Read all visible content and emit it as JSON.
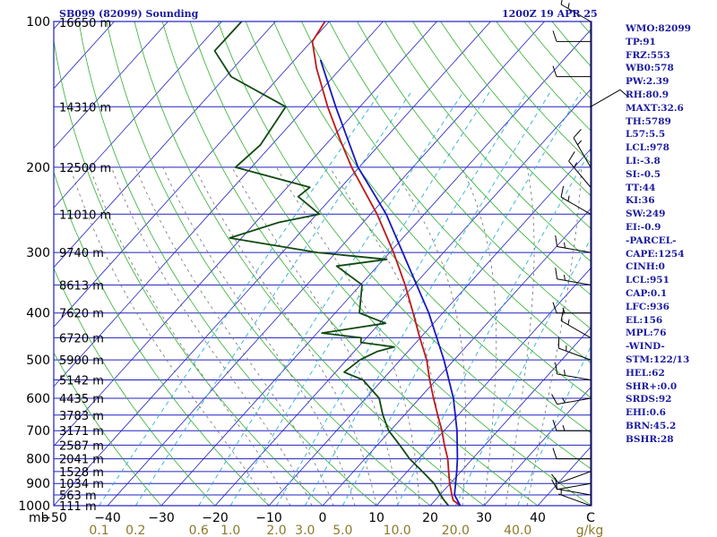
{
  "header": {
    "station": "SB099 (82099) Sounding",
    "time": "1200Z 19 APR 25"
  },
  "indices": [
    "WMO:82099",
    "TP:91",
    "FRZ:553",
    "WB0:578",
    "PW:2.39",
    "RH:80.9",
    "MAXT:32.6",
    "TH:5789",
    "L57:5.5",
    "LCL:978",
    "LI:-3.8",
    "SI:-0.5",
    "TT:44",
    "KI:36",
    "SW:249",
    "EI:-0.9",
    "-PARCEL-",
    "CAPE:1254",
    "CINH:0",
    "LCL:951",
    "CAP:0.1",
    "LFC:936",
    "EL:156",
    "MPL:76",
    "-WIND-",
    "STM:122/13",
    "HEL:62",
    "SHR+:0.0",
    "SRDS:92",
    "EHI:0.6",
    "BRN:45.2",
    "BSHR:28"
  ],
  "colors": {
    "isobar": "#2020c0",
    "isotherm": "#2020c0",
    "dry_adiabat": "#30b030",
    "moist_adiabat": "#707070",
    "mixing_ratio": "#30b0d0",
    "temperature": "#c01818",
    "dewpoint": "#104a10",
    "parcel": "#1818c0",
    "axis_label": "#000000",
    "mixing_ratio_label": "#8a7a2a",
    "wind_barb": "#000000"
  },
  "chart_data": {
    "type": "skew-t",
    "title": "SB099 (82099) Sounding",
    "pressure_axis": {
      "unit_label": "mb",
      "ticks": [
        100,
        200,
        300,
        400,
        500,
        600,
        700,
        800,
        900,
        1000
      ],
      "range": [
        1000,
        100
      ],
      "scale": "log"
    },
    "temperature_axis": {
      "unit_label": "C",
      "ticks": [
        -50,
        -40,
        -30,
        -20,
        -10,
        0,
        10,
        20,
        30,
        40
      ],
      "range": [
        -50,
        50
      ]
    },
    "mixing_ratio_axis": {
      "unit_label": "g/kg",
      "ticks": [
        "0.1",
        "0.2",
        "0.6",
        "1.0",
        "2.0",
        "3.0",
        "5.0",
        "10.0",
        "20.0",
        "40.0"
      ],
      "values": [
        0.1,
        0.2,
        0.6,
        1.0,
        2.0,
        3.0,
        5.0,
        10.0,
        20.0,
        40.0
      ]
    },
    "height_labels": [
      {
        "p": 100,
        "label": "16650 m"
      },
      {
        "p": 150,
        "label": "14310 m"
      },
      {
        "p": 200,
        "label": "12500 m"
      },
      {
        "p": 250,
        "label": "11010 m"
      },
      {
        "p": 300,
        "label": "9740 m"
      },
      {
        "p": 350,
        "label": "8613 m"
      },
      {
        "p": 400,
        "label": "7620 m"
      },
      {
        "p": 450,
        "label": "6720 m"
      },
      {
        "p": 500,
        "label": "5900 m"
      },
      {
        "p": 550,
        "label": "5142 m"
      },
      {
        "p": 600,
        "label": "4435 m"
      },
      {
        "p": 650,
        "label": "3783 m"
      },
      {
        "p": 700,
        "label": "3171 m"
      },
      {
        "p": 750,
        "label": "2587 m"
      },
      {
        "p": 800,
        "label": "2041 m"
      },
      {
        "p": 850,
        "label": "1528 m"
      },
      {
        "p": 900,
        "label": "1034 m"
      },
      {
        "p": 950,
        "label": "563 m"
      },
      {
        "p": 1000,
        "label": "111 m"
      }
    ],
    "series": [
      {
        "name": "Temperature",
        "points": [
          [
            1008,
            26.6
          ],
          [
            1000,
            25.6
          ],
          [
            975,
            23.4
          ],
          [
            950,
            22.2
          ],
          [
            925,
            21.1
          ],
          [
            900,
            19.9
          ],
          [
            850,
            17.7
          ],
          [
            800,
            15.4
          ],
          [
            750,
            12.5
          ],
          [
            700,
            9.6
          ],
          [
            650,
            6.2
          ],
          [
            600,
            2.6
          ],
          [
            550,
            -1.2
          ],
          [
            500,
            -5.1
          ],
          [
            450,
            -10.1
          ],
          [
            400,
            -15.5
          ],
          [
            350,
            -21.7
          ],
          [
            300,
            -29.3
          ],
          [
            250,
            -38.8
          ],
          [
            200,
            -51.4
          ],
          [
            175,
            -58.3
          ],
          [
            150,
            -66.0
          ],
          [
            125,
            -74.5
          ],
          [
            110,
            -79.8
          ],
          [
            100,
            -80.8
          ]
        ]
      },
      {
        "name": "Dewpoint",
        "points": [
          [
            1008,
            24.0
          ],
          [
            1000,
            23.4
          ],
          [
            975,
            21.7
          ],
          [
            950,
            20.1
          ],
          [
            925,
            18.6
          ],
          [
            900,
            17.0
          ],
          [
            850,
            12.8
          ],
          [
            800,
            8.3
          ],
          [
            750,
            4.2
          ],
          [
            700,
            -0.3
          ],
          [
            650,
            -4.0
          ],
          [
            600,
            -7.5
          ],
          [
            550,
            -13.6
          ],
          [
            530,
            -18.4
          ],
          [
            500,
            -17.5
          ],
          [
            480,
            -15.7
          ],
          [
            470,
            -13.3
          ],
          [
            460,
            -20.3
          ],
          [
            450,
            -21.0
          ],
          [
            440,
            -29.1
          ],
          [
            420,
            -18.9
          ],
          [
            400,
            -25.5
          ],
          [
            350,
            -29.7
          ],
          [
            320,
            -37.6
          ],
          [
            310,
            -29.4
          ],
          [
            300,
            -43.5
          ],
          [
            280,
            -62.2
          ],
          [
            260,
            -55.7
          ],
          [
            250,
            -49.5
          ],
          [
            230,
            -56.4
          ],
          [
            220,
            -55.8
          ],
          [
            200,
            -73.0
          ],
          [
            180,
            -72.1
          ],
          [
            150,
            -73.8
          ],
          [
            130,
            -89.0
          ],
          [
            115,
            -96.4
          ],
          [
            100,
            -96.3
          ]
        ]
      },
      {
        "name": "Parcel",
        "points": [
          [
            1000,
            25.6
          ],
          [
            950,
            22.7
          ],
          [
            900,
            21.0
          ],
          [
            850,
            19.2
          ],
          [
            800,
            17.2
          ],
          [
            700,
            12.4
          ],
          [
            600,
            6.3
          ],
          [
            500,
            -1.9
          ],
          [
            400,
            -12.6
          ],
          [
            300,
            -27.6
          ],
          [
            250,
            -37.1
          ],
          [
            200,
            -50.2
          ],
          [
            150,
            -64.5
          ],
          [
            120,
            -75.2
          ]
        ]
      }
    ],
    "winds": [
      {
        "p": 1000,
        "dir": 290,
        "spd": 5
      },
      {
        "p": 950,
        "dir": 280,
        "spd": 10
      },
      {
        "p": 900,
        "dir": 260,
        "spd": 10
      },
      {
        "p": 850,
        "dir": 250,
        "spd": 10
      },
      {
        "p": 800,
        "dir": 270,
        "spd": 10
      },
      {
        "p": 700,
        "dir": 270,
        "spd": 15
      },
      {
        "p": 600,
        "dir": 260,
        "spd": 15
      },
      {
        "p": 550,
        "dir": 280,
        "spd": 15
      },
      {
        "p": 500,
        "dir": 290,
        "spd": 15
      },
      {
        "p": 450,
        "dir": 300,
        "spd": 15
      },
      {
        "p": 400,
        "dir": 270,
        "spd": 15
      },
      {
        "p": 350,
        "dir": 280,
        "spd": 15
      },
      {
        "p": 300,
        "dir": 280,
        "spd": 15
      },
      {
        "p": 250,
        "dir": 300,
        "spd": 15
      },
      {
        "p": 220,
        "dir": 320,
        "spd": 15
      },
      {
        "p": 200,
        "dir": 330,
        "spd": 15
      },
      {
        "p": 150,
        "dir": 60,
        "spd": 10
      },
      {
        "p": 130,
        "dir": 270,
        "spd": 10
      },
      {
        "p": 110,
        "dir": 270,
        "spd": 10
      },
      {
        "p": 100,
        "dir": 300,
        "spd": 15
      }
    ],
    "grid": true,
    "legend": "none"
  }
}
